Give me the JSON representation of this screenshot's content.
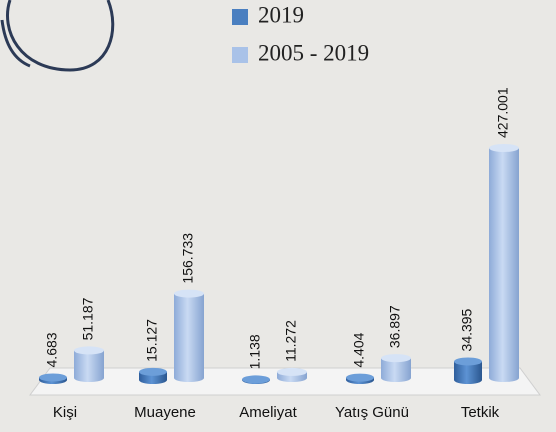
{
  "chart_data": {
    "type": "bar",
    "categories": [
      "Kişi",
      "Muayene",
      "Ameliyat",
      "Yatış Günü",
      "Tetkik"
    ],
    "series": [
      {
        "name": "2019",
        "color": "#4a7fc0",
        "values": [
          4683,
          15127,
          1138,
          4404,
          34395
        ],
        "value_labels": [
          "4.683",
          "15.127",
          "1.138",
          "4.404",
          "34.395"
        ]
      },
      {
        "name": "2005 - 2019",
        "color": "#a9c2e8",
        "values": [
          51187,
          156733,
          11272,
          36897,
          427001
        ],
        "value_labels": [
          "51.187",
          "156.733",
          "11.272",
          "36.897",
          "427.001"
        ]
      }
    ]
  }
}
